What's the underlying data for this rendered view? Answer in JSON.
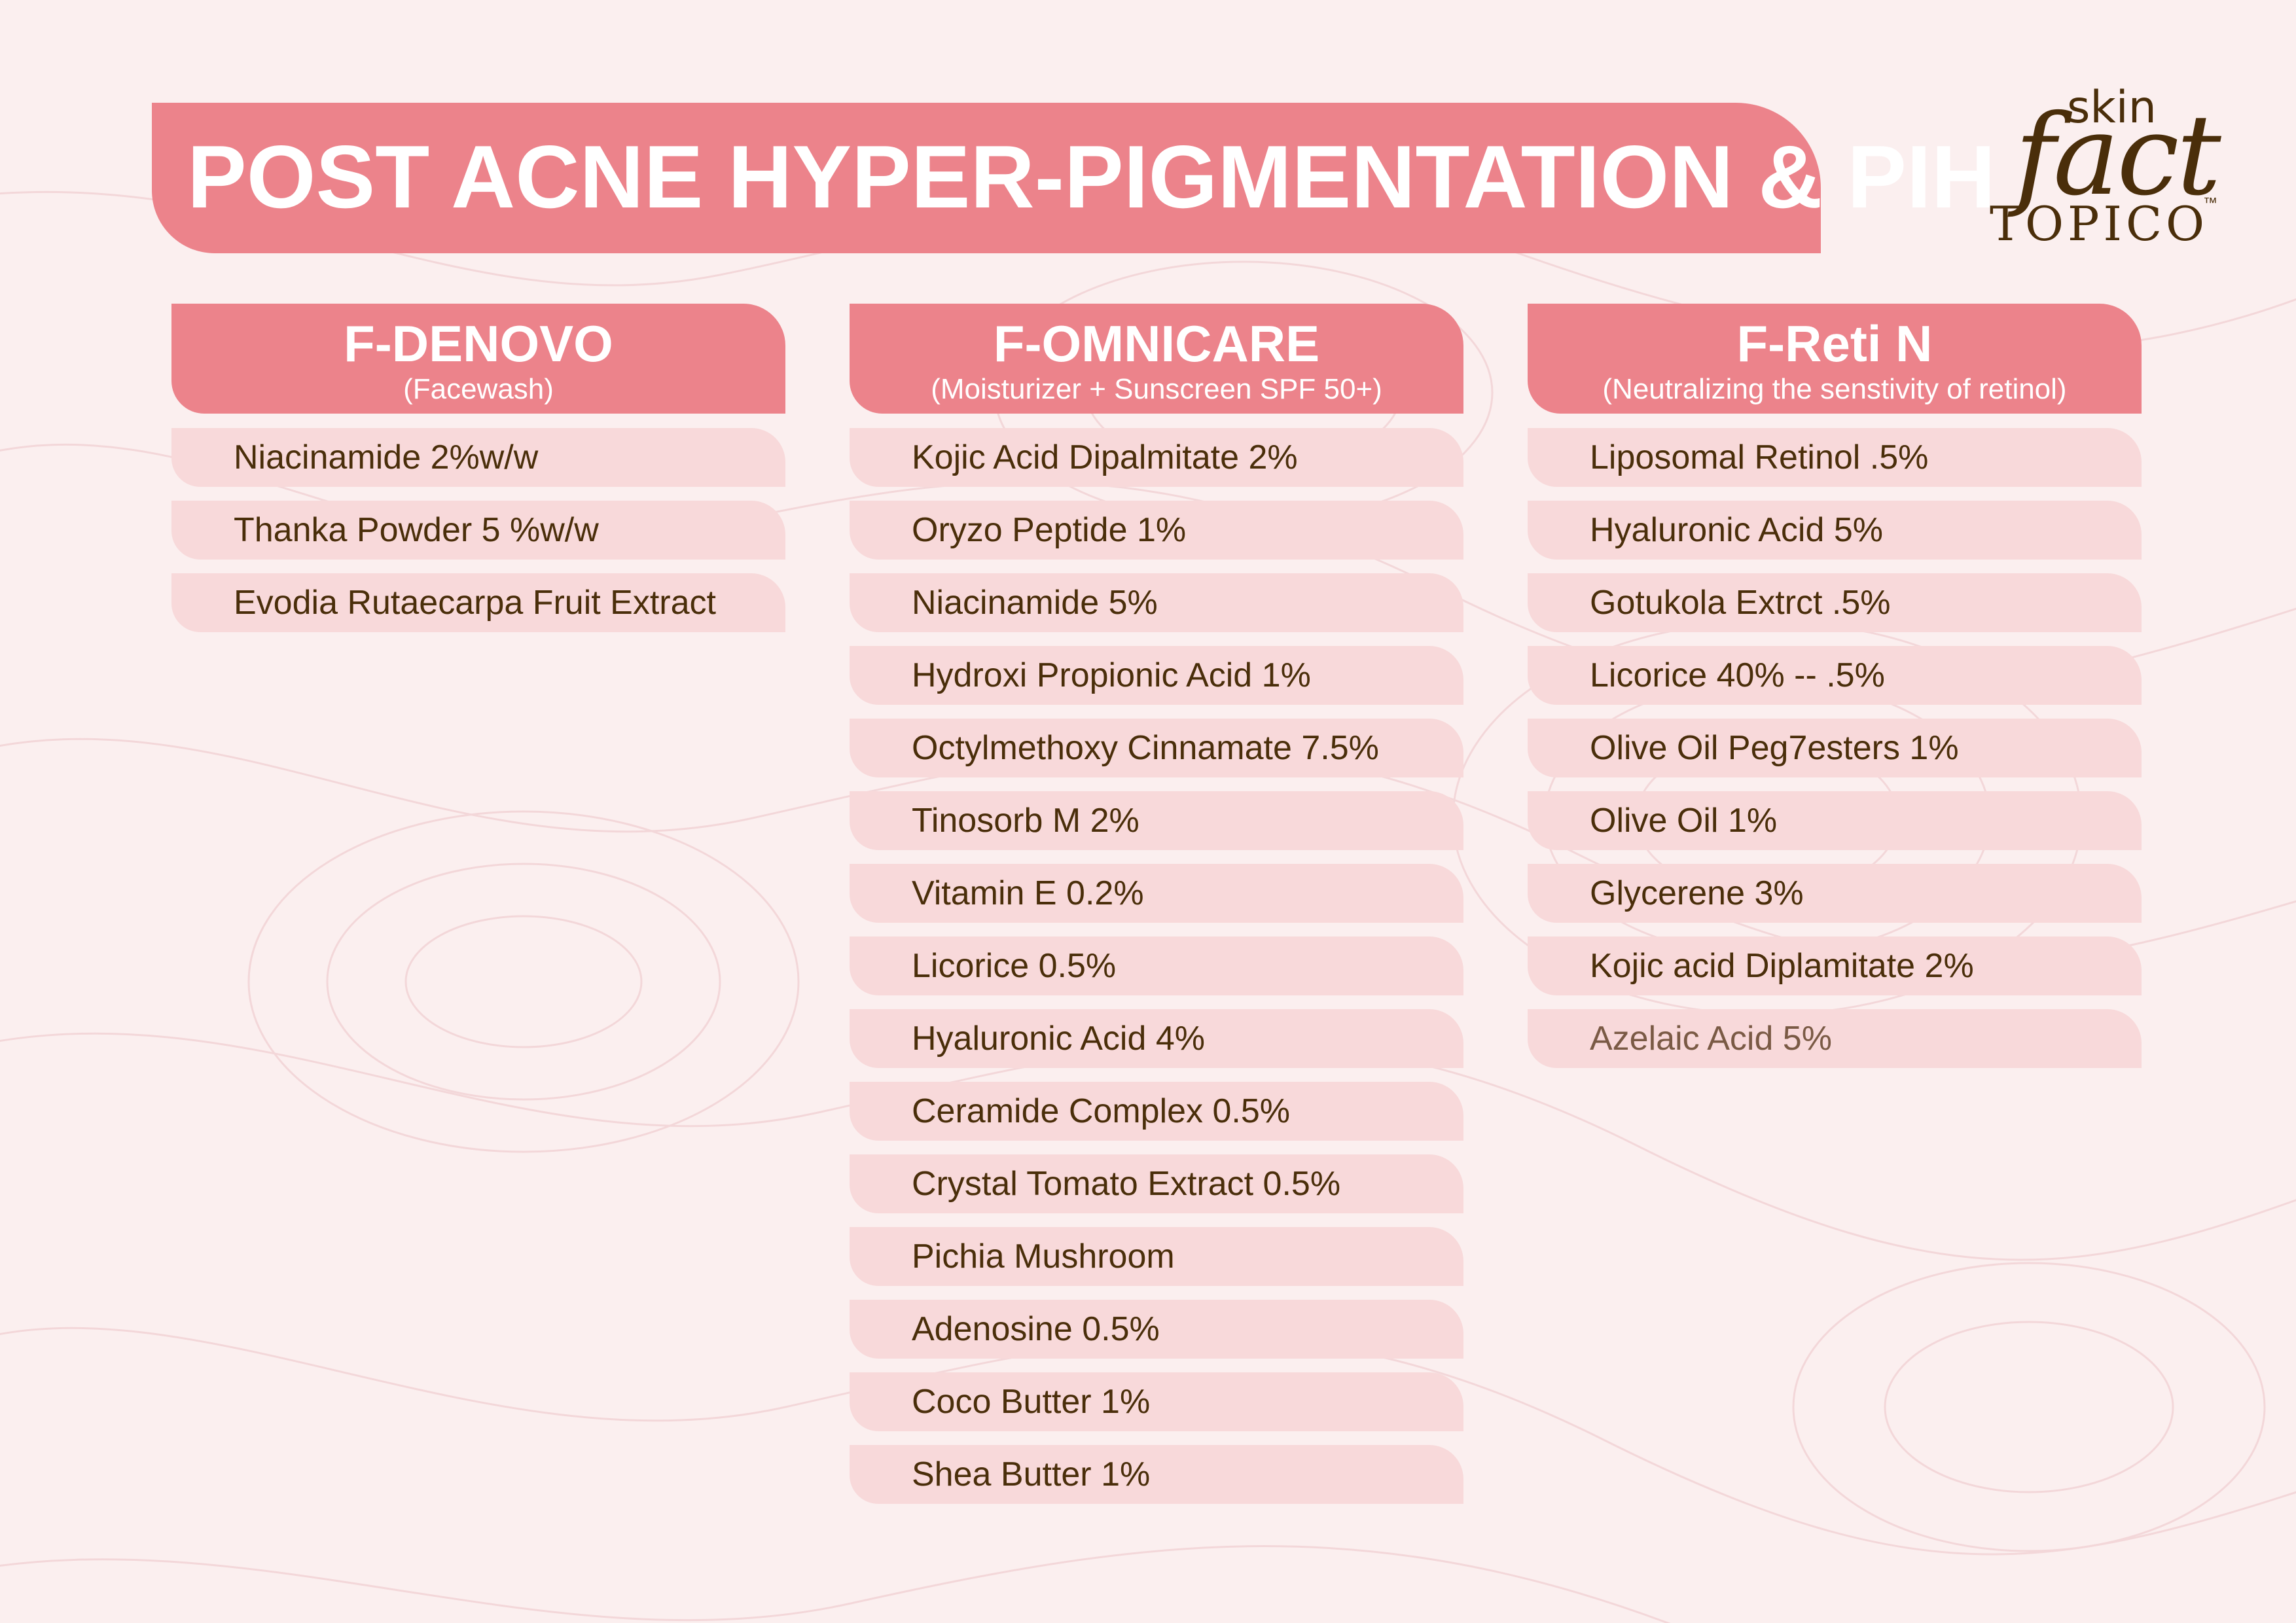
{
  "title": "POST ACNE HYPER-PIGMENTATION & PIH",
  "logo": {
    "top": "skin",
    "main": "fact",
    "bottom": "TOPICO",
    "tm": "™"
  },
  "colors": {
    "accent": "#ec838b",
    "row": "#f8d9da",
    "text": "#4a2e0a",
    "background": "#fbefef"
  },
  "columns": [
    {
      "name": "F-DENOVO",
      "subtitle": "(Facewash)",
      "items": [
        "Niacinamide 2%w/w",
        "Thanka Powder 5 %w/w",
        "Evodia Rutaecarpa Fruit Extract"
      ]
    },
    {
      "name": "F-OMNICARE",
      "subtitle": "(Moisturizer + Sunscreen SPF 50+)",
      "items": [
        "Kojic Acid Dipalmitate 2%",
        "Oryzo Peptide 1%",
        "Niacinamide 5%",
        "Hydroxi Propionic Acid 1%",
        "Octylmethoxy Cinnamate 7.5%",
        "Tinosorb M 2%",
        "Vitamin E 0.2%",
        "Licorice 0.5%",
        "Hyaluronic Acid 4%",
        "Ceramide Complex 0.5%",
        "Crystal Tomato Extract 0.5%",
        "Pichia Mushroom",
        "Adenosine 0.5%",
        "Coco Butter 1%",
        "Shea Butter 1%"
      ]
    },
    {
      "name": "F-Reti N",
      "subtitle": "(Neutralizing the senstivity of retinol)",
      "items": [
        "Liposomal Retinol .5%",
        "Hyaluronic Acid 5%",
        "Gotukola Extrct .5%",
        "Licorice 40% -- .5%",
        "Olive Oil Peg7esters 1%",
        "Olive Oil 1%",
        "Glycerene 3%",
        "Kojic acid Diplamitate 2%",
        "Azelaic Acid 5%"
      ]
    }
  ]
}
